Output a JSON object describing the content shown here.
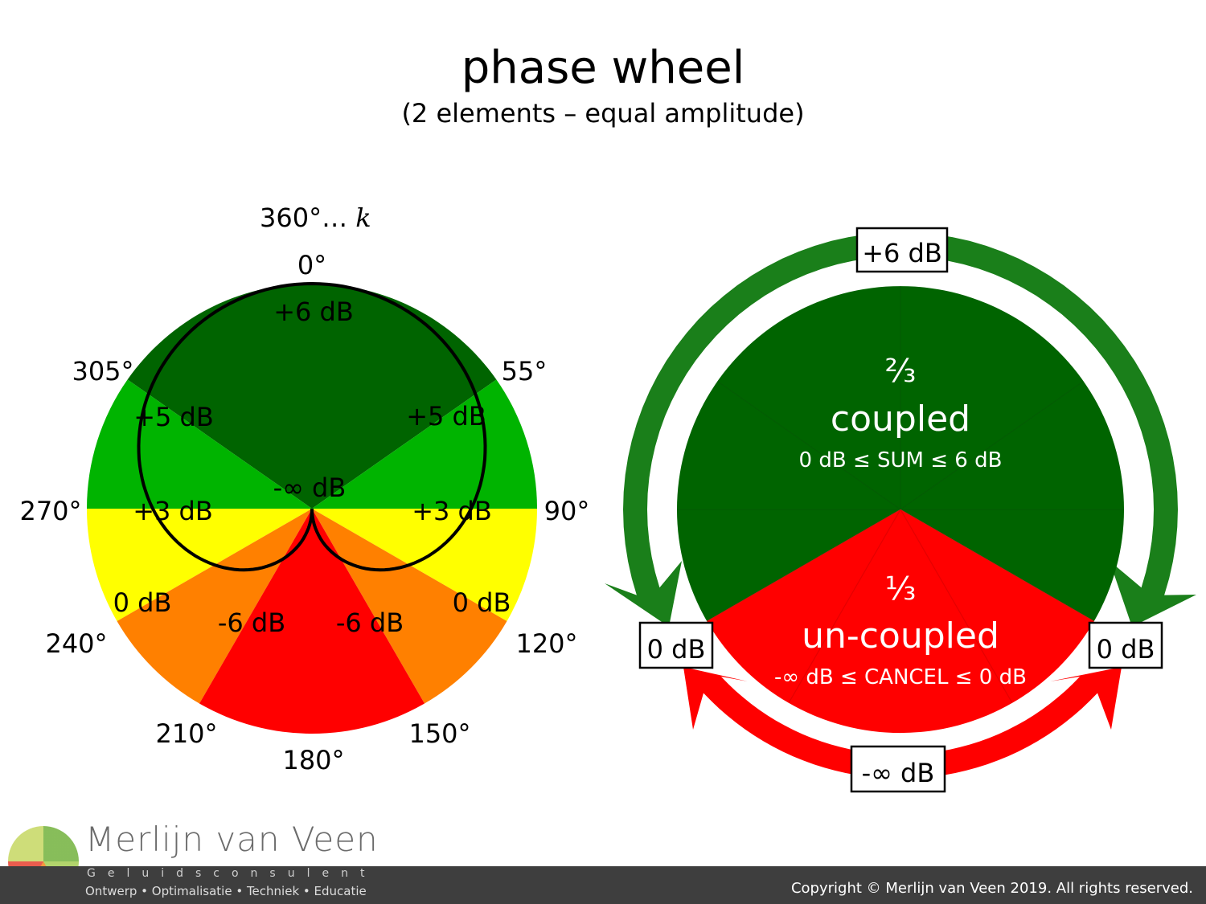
{
  "header": {
    "title": "phase wheel",
    "subtitle": "(2 elements – equal amplitude)"
  },
  "left_wheel": {
    "angle_labels": {
      "top_extra": "360°… ",
      "top_extra_k": "k",
      "a0": "0°",
      "a55": "55°",
      "a90": "90°",
      "a120": "120°",
      "a150": "150°",
      "a180": "180°",
      "a210": "210°",
      "a240": "240°",
      "a270": "270°",
      "a305": "305°"
    },
    "zone_labels": {
      "plus6": "+6 dB",
      "plus5_left": "+5 dB",
      "plus5_right": "+5 dB",
      "neg_inf": "-∞ dB",
      "plus3_left": "+3 dB",
      "plus3_right": "+3 dB",
      "zero_left": "0 dB",
      "zero_right": "0 dB",
      "minus6_left": "-6 dB",
      "minus6_right": "-6 dB"
    },
    "colors": {
      "plus6": "#006400",
      "plus5": "#00b400",
      "plus3": "#ffff00",
      "zero": "#ff8000",
      "minus6": "#ff0000",
      "cardioid": "#000000"
    }
  },
  "right_wheel": {
    "coupled_fraction": "⅔",
    "coupled_label": "coupled",
    "coupled_range": "0 dB ≤ SUM ≤ 6 dB",
    "uncoupled_fraction": "⅓",
    "uncoupled_label": "un-coupled",
    "uncoupled_range": "-∞ dB ≤ CANCEL ≤ 0 dB",
    "box_top": "+6 dB",
    "box_left": "0 dB",
    "box_right": "0 dB",
    "box_bottom": "-∞ dB",
    "colors": {
      "coupled": "#006400",
      "uncoupled": "#ff0000",
      "arrow_green": "#1a7f1a",
      "arrow_red": "#ff0000"
    }
  },
  "footer": {
    "logo_name": "Merlijn van Veen",
    "logo_tagline": "Geluidsconsulent",
    "logo_services": "Ontwerp • Optimalisatie • Techniek • Educatie",
    "copyright": "Copyright © Merlijn van Veen 2019. All rights reserved."
  }
}
